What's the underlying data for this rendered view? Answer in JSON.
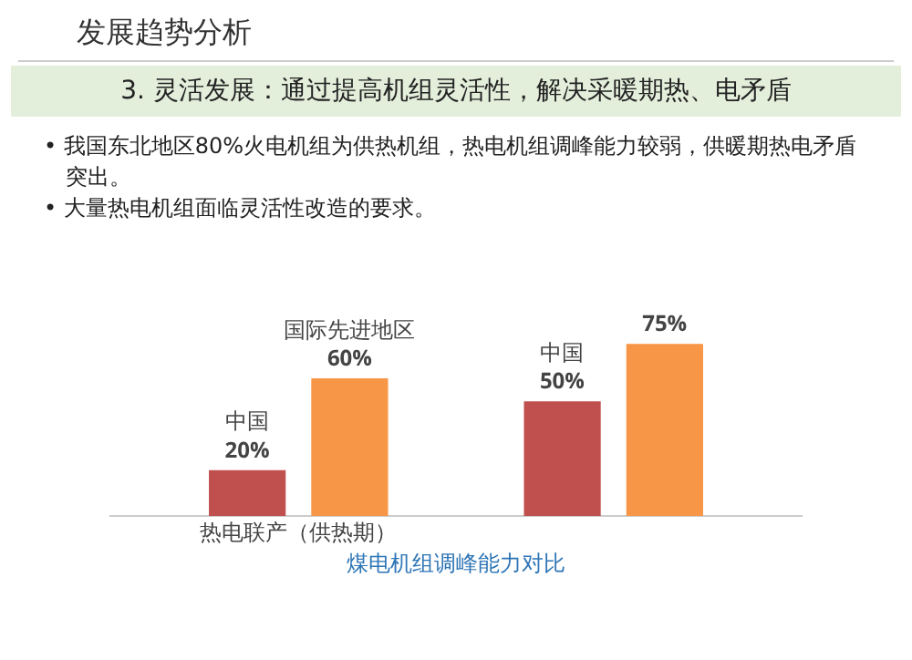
{
  "chart_data": {
    "type": "bar",
    "title": "发展趋势分析",
    "subtitle": "3. 灵活发展：通过提高机组灵活性，解决采暖期热、电矛盾",
    "annotations": [
      "• 我国东北地区80%火电机组为供热机组，热电机组调峰能力较弱，供暖期热电矛盾突出。",
      "• 大量热电机组面临灵活性改造的要求。"
    ],
    "xlabel": "煤电机组调峰能力对比",
    "categories": [
      "热电联产（供热期）",
      null
    ],
    "series": [
      {
        "name": "中国",
        "color": "#c0504d",
        "values": [
          20,
          50
        ],
        "value_labels": [
          "20%",
          "50%"
        ]
      },
      {
        "name": "国际先进地区",
        "color": "#f79646",
        "values": [
          60,
          75
        ],
        "value_labels": [
          "60%",
          "75%"
        ]
      }
    ],
    "legend": false,
    "grid": false
  }
}
